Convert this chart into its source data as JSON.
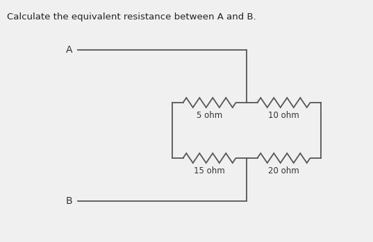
{
  "title": "Calculate the equivalent resistance between A and B.",
  "title_fontsize": 9.5,
  "bg_color": "#f0f0f0",
  "line_color": "#555555",
  "line_width": 1.3,
  "resistors": [
    {
      "label": "5 ohm"
    },
    {
      "label": "15 ohm"
    },
    {
      "label": "10 ohm"
    },
    {
      "label": "20 ohm"
    }
  ],
  "node_A": "A",
  "node_B": "B",
  "label_fontsize": 8.5
}
